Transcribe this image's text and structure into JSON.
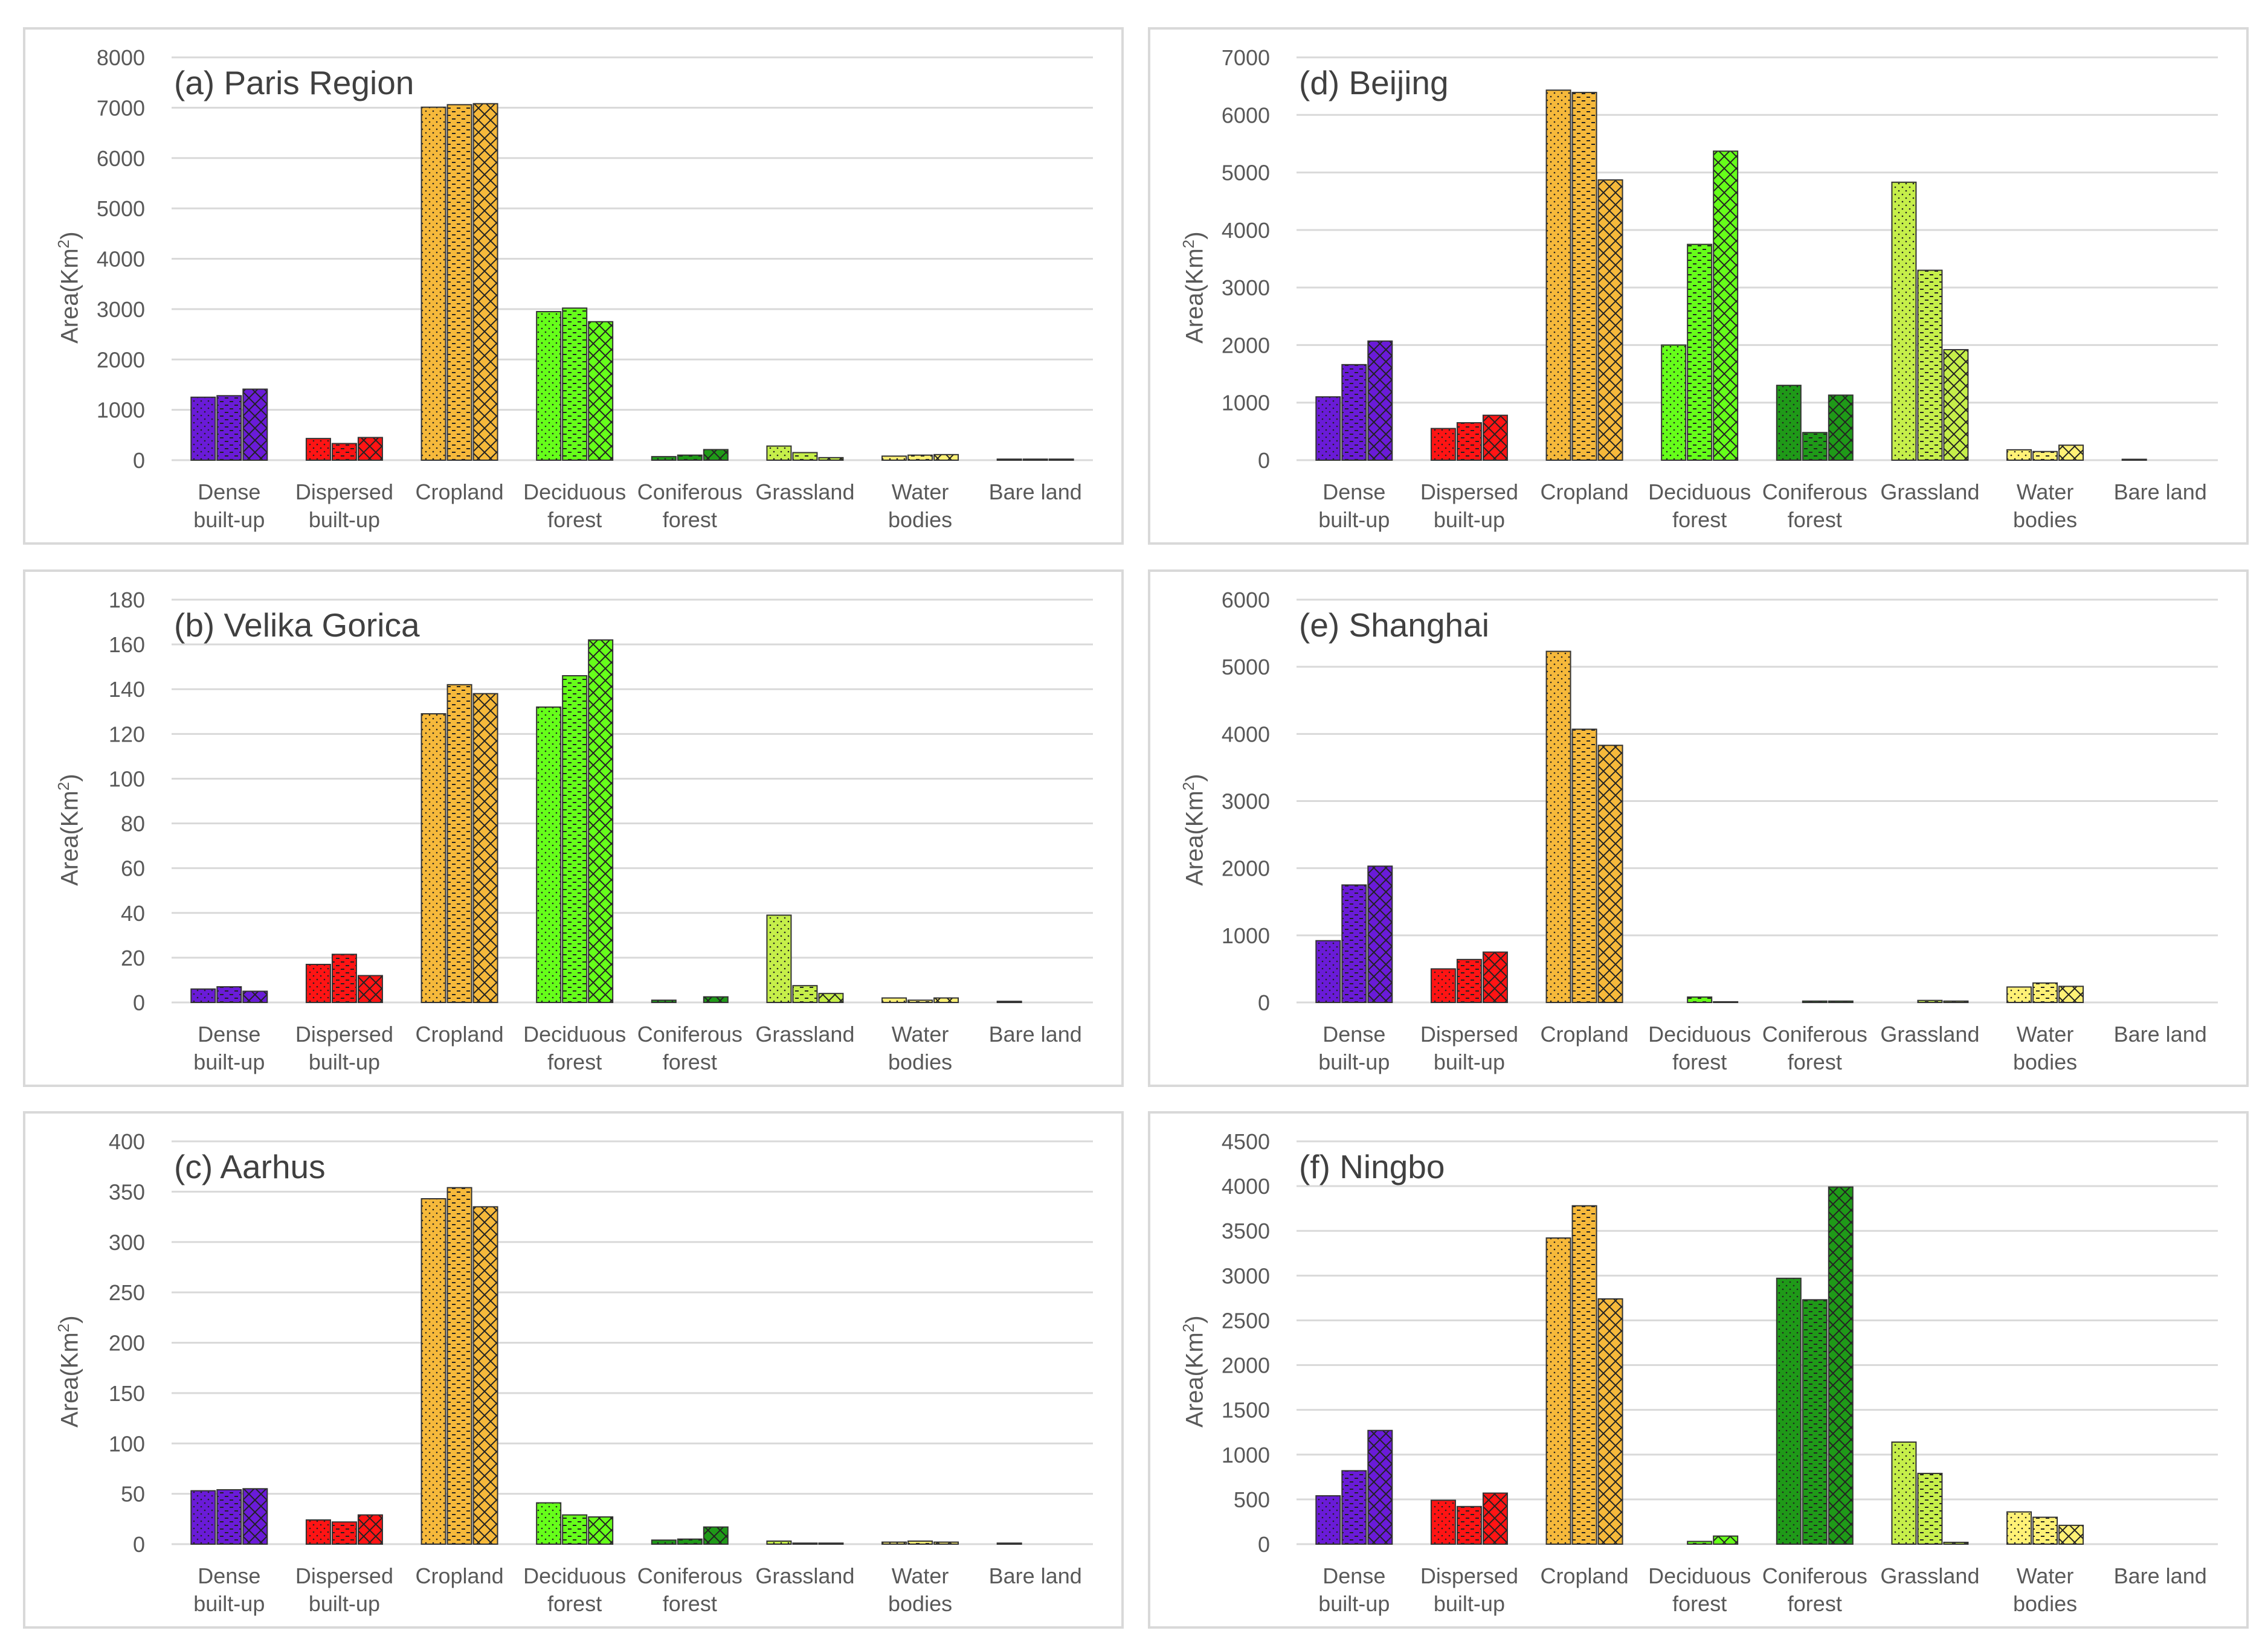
{
  "chart_data": [
    {
      "type": "bar",
      "title": "(a) Paris Region",
      "ylabel": "Area(Km²)",
      "ylim": [
        0,
        8000
      ],
      "yticks": [
        0,
        1000,
        2000,
        3000,
        4000,
        5000,
        6000,
        7000,
        8000
      ],
      "grid": true,
      "categories": [
        "Dense built-up",
        "Dispersed built-up",
        "Cropland",
        "Deciduous forest",
        "Coniferous forest",
        "Grassland",
        "Water bodies",
        "Bare land"
      ],
      "series": [
        {
          "values": [
            1250,
            430,
            7010,
            2950,
            70,
            280,
            80,
            20
          ]
        },
        {
          "values": [
            1280,
            330,
            7060,
            3020,
            100,
            150,
            100,
            20
          ]
        },
        {
          "values": [
            1410,
            450,
            7080,
            2750,
            210,
            50,
            110,
            20
          ]
        }
      ]
    },
    {
      "type": "bar",
      "title": "(d) Beijing",
      "ylabel": "Area(Km²)",
      "ylim": [
        0,
        7000
      ],
      "yticks": [
        0,
        1000,
        2000,
        3000,
        4000,
        5000,
        6000,
        7000
      ],
      "grid": true,
      "categories": [
        "Dense built-up",
        "Dispersed built-up",
        "Cropland",
        "Deciduous forest",
        "Coniferous forest",
        "Grassland",
        "Water bodies",
        "Bare land"
      ],
      "series": [
        {
          "values": [
            1100,
            550,
            6430,
            2000,
            1300,
            4830,
            180,
            15
          ]
        },
        {
          "values": [
            1660,
            650,
            6390,
            3750,
            480,
            3300,
            150,
            0
          ]
        },
        {
          "values": [
            2070,
            780,
            4870,
            5370,
            1130,
            1920,
            260,
            0
          ]
        }
      ]
    },
    {
      "type": "bar",
      "title": "(b) Velika Gorica",
      "ylabel": "Area(Km²)",
      "ylim": [
        0,
        180
      ],
      "yticks": [
        0,
        20,
        40,
        60,
        80,
        100,
        120,
        140,
        160,
        180
      ],
      "grid": true,
      "categories": [
        "Dense built-up",
        "Dispersed built-up",
        "Cropland",
        "Deciduous forest",
        "Coniferous forest",
        "Grassland",
        "Water bodies",
        "Bare land"
      ],
      "series": [
        {
          "values": [
            6,
            17,
            129,
            132,
            1,
            39,
            2,
            0.5
          ]
        },
        {
          "values": [
            7,
            21.5,
            142,
            146,
            0,
            7.5,
            1,
            0
          ]
        },
        {
          "values": [
            5,
            12,
            138,
            162,
            2.5,
            4,
            2,
            0
          ]
        }
      ]
    },
    {
      "type": "bar",
      "title": "(e) Shanghai",
      "ylabel": "Area(Km²)",
      "ylim": [
        0,
        6000
      ],
      "yticks": [
        0,
        1000,
        2000,
        3000,
        4000,
        5000,
        6000
      ],
      "grid": true,
      "categories": [
        "Dense built-up",
        "Dispersed built-up",
        "Cropland",
        "Deciduous forest",
        "Coniferous forest",
        "Grassland",
        "Water bodies",
        "Bare land"
      ],
      "series": [
        {
          "values": [
            920,
            500,
            5230,
            0,
            0,
            0,
            230,
            0
          ]
        },
        {
          "values": [
            1750,
            640,
            4070,
            80,
            20,
            30,
            290,
            0
          ]
        },
        {
          "values": [
            2030,
            750,
            3830,
            10,
            20,
            20,
            240,
            0
          ]
        }
      ]
    },
    {
      "type": "bar",
      "title": "(c) Aarhus",
      "ylabel": "Area(Km²)",
      "ylim": [
        0,
        400
      ],
      "yticks": [
        0,
        50,
        100,
        150,
        200,
        250,
        300,
        350,
        400
      ],
      "grid": true,
      "categories": [
        "Dense built-up",
        "Dispersed built-up",
        "Cropland",
        "Deciduous forest",
        "Coniferous forest",
        "Grassland",
        "Water bodies",
        "Bare land"
      ],
      "series": [
        {
          "values": [
            53,
            24,
            343,
            41,
            4,
            3,
            2,
            1
          ]
        },
        {
          "values": [
            54,
            22,
            354,
            29,
            5,
            1,
            3,
            0
          ]
        },
        {
          "values": [
            55,
            29,
            335,
            27,
            17,
            1,
            2,
            0
          ]
        }
      ]
    },
    {
      "type": "bar",
      "title": "(f) Ningbo",
      "ylabel": "Area(Km²)",
      "ylim": [
        0,
        4500
      ],
      "yticks": [
        0,
        500,
        1000,
        1500,
        2000,
        2500,
        3000,
        3500,
        4000,
        4500
      ],
      "grid": true,
      "categories": [
        "Dense built-up",
        "Dispersed built-up",
        "Cropland",
        "Deciduous forest",
        "Coniferous forest",
        "Grassland",
        "Water bodies",
        "Bare land"
      ],
      "series": [
        {
          "values": [
            540,
            490,
            3420,
            0,
            2970,
            1140,
            360,
            0
          ]
        },
        {
          "values": [
            820,
            420,
            3780,
            30,
            2730,
            790,
            300,
            0
          ]
        },
        {
          "values": [
            1270,
            570,
            2740,
            90,
            3990,
            20,
            210,
            0
          ]
        }
      ]
    }
  ],
  "colors": {
    "categories": [
      "#6a1bd8",
      "#ff1414",
      "#f6b93b",
      "#66ff1a",
      "#1f9a18",
      "#c6ef4a",
      "#fff176",
      "#cccccc"
    ],
    "bar_outline": "#333333",
    "grid": "#d9d9d9",
    "axis_text": "#595959",
    "panel_border": "#d9d9d9"
  }
}
